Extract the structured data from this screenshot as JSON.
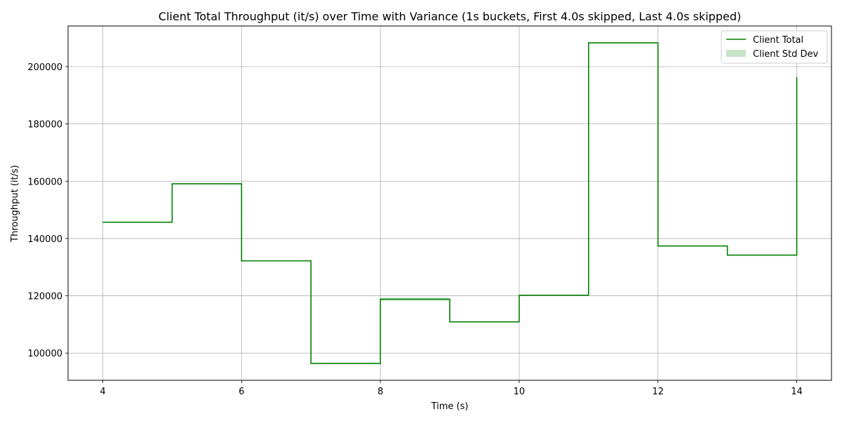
{
  "chart_data": {
    "type": "line",
    "title": "Client Total Throughput (it/s) over Time with Variance (1s buckets, First 4.0s skipped, Last 4.0s skipped)",
    "xlabel": "Time (s)",
    "ylabel": "Throughput (it/s)",
    "xlim": [
      3.5,
      14.5
    ],
    "ylim": [
      90500,
      214200
    ],
    "xticks": [
      4,
      6,
      8,
      10,
      12,
      14
    ],
    "yticks": [
      100000,
      120000,
      140000,
      160000,
      180000,
      200000
    ],
    "grid": true,
    "legend_position": "top-right",
    "step": "post",
    "series": [
      {
        "name": "Client Total",
        "color": "#008000",
        "x": [
          4,
          5,
          6,
          7,
          8,
          9,
          10,
          11,
          12,
          13,
          14
        ],
        "values": [
          145700,
          159100,
          132200,
          96400,
          118800,
          110900,
          120200,
          208300,
          137400,
          134200,
          196300
        ]
      }
    ],
    "variance": {
      "name": "Client Std Dev",
      "color": "#008000",
      "opacity": 0.22,
      "x": [
        4,
        5,
        6,
        7,
        8,
        9,
        10,
        11,
        12,
        13,
        14
      ],
      "lower": [
        145700,
        159100,
        132200,
        96400,
        118300,
        110900,
        120200,
        208300,
        137400,
        134200,
        196300
      ],
      "upper": [
        145700,
        159100,
        132200,
        96400,
        119300,
        110900,
        120200,
        208300,
        137400,
        134200,
        196300
      ]
    }
  }
}
